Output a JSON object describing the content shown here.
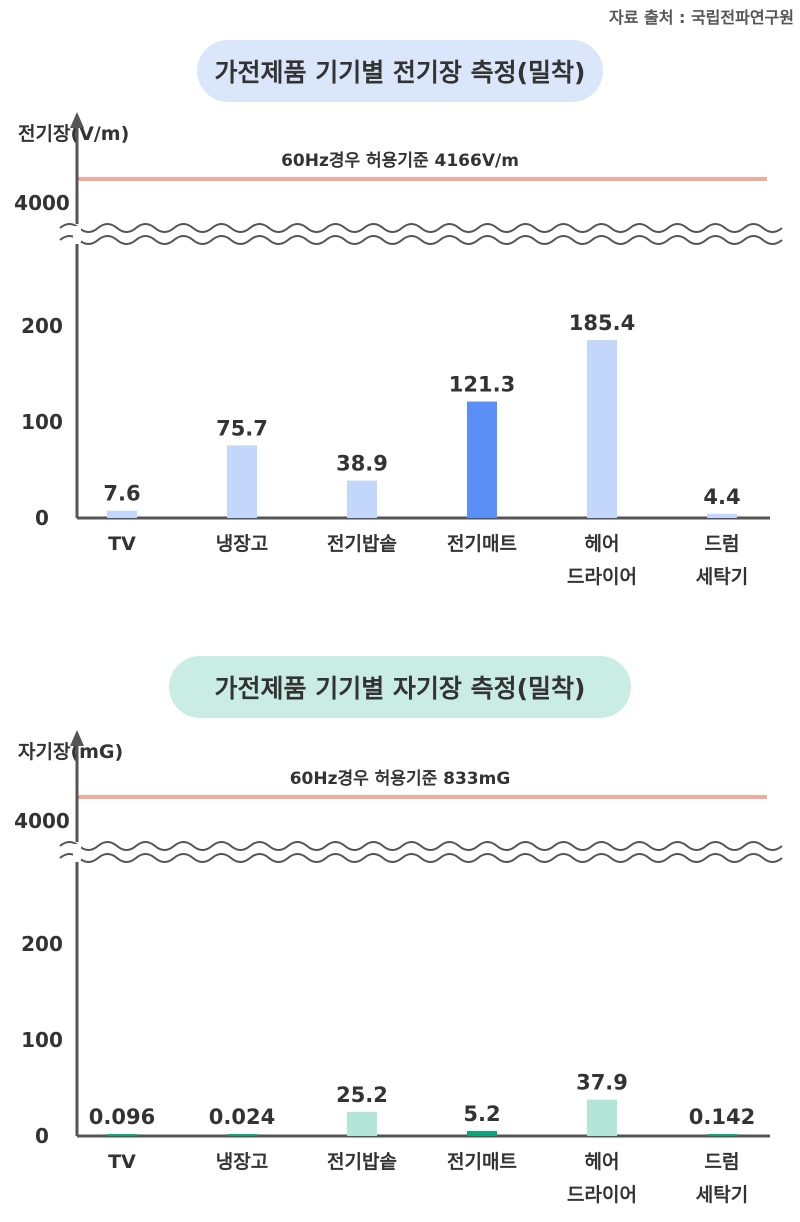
{
  "source": "자료 출처 :  국립전파연구원",
  "colors": {
    "limit_line": "#f2aa9a",
    "axis": "#555555",
    "blue_light": "#c3d6fb",
    "blue_dark": "#5b8ff8",
    "green_light": "#b3e6d8",
    "green_dark": "#10a47b",
    "pill_blue": "#dae7fb",
    "pill_green": "#c9ede2"
  },
  "chart_data": [
    {
      "type": "bar",
      "title": "가전제품 기기별 전기장 측정(밀착)",
      "ylabel": "전기장(V/m)",
      "limit_label": "60Hz경우 허용기준 4166V/m",
      "limit_value": 4166,
      "y_ticks": [
        "4000",
        "200",
        "100",
        "0"
      ],
      "axis_break": "between 200 and 4000",
      "categories": [
        [
          "TV"
        ],
        [
          "냉장고"
        ],
        [
          "전기밥솥"
        ],
        [
          "전기매트"
        ],
        [
          "헤어",
          "드라이어"
        ],
        [
          "드럼",
          "세탁기"
        ]
      ],
      "values": [
        7.6,
        75.7,
        38.9,
        121.3,
        185.4,
        4.4
      ],
      "value_labels": [
        "7.6",
        "75.7",
        "38.9",
        "121.3",
        "185.4",
        "4.4"
      ],
      "highlight_index": 3
    },
    {
      "type": "bar",
      "title": "가전제품 기기별 자기장 측정(밀착)",
      "ylabel": "자기장(mG)",
      "limit_label": "60Hz경우 허용기준 833mG",
      "limit_value": 833,
      "y_ticks": [
        "4000",
        "200",
        "100",
        "0"
      ],
      "axis_break": "between 200 and 4000",
      "categories": [
        [
          "TV"
        ],
        [
          "냉장고"
        ],
        [
          "전기밥솥"
        ],
        [
          "전기매트"
        ],
        [
          "헤어",
          "드라이어"
        ],
        [
          "드럼",
          "세탁기"
        ]
      ],
      "values": [
        0.096,
        0.024,
        25.2,
        5.2,
        37.9,
        0.142
      ],
      "value_labels": [
        "0.096",
        "0.024",
        "25.2",
        "5.2",
        "37.9",
        "0.142"
      ],
      "highlight_index": 3
    }
  ]
}
